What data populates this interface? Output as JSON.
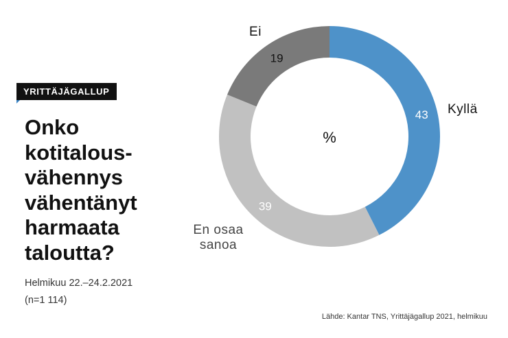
{
  "badge": "YRITTÄJÄGALLUP",
  "question": "Onko\nkotitalous-\nvähennys\nvähentänyt\nharmaata\ntaloutta?",
  "period": "Helmikuu 22.–24.2.2021",
  "sample": "(n=1 114)",
  "source": "Lähde: Kantar TNS, Yrittäjägallup 2021, helmikuu",
  "chart_data": {
    "type": "pie",
    "title": "Onko kotitalousvähennys vähentänyt harmaata taloutta?",
    "center_label": "%",
    "categories": [
      "Kyllä",
      "En osaa sanoa",
      "Ei"
    ],
    "values": [
      43,
      39,
      19
    ],
    "colors": [
      "#4e92c9",
      "#c1c1c1",
      "#7a7a7a"
    ],
    "value_text_colors": [
      "#ffffff",
      "#ffffff",
      "#111111"
    ]
  }
}
